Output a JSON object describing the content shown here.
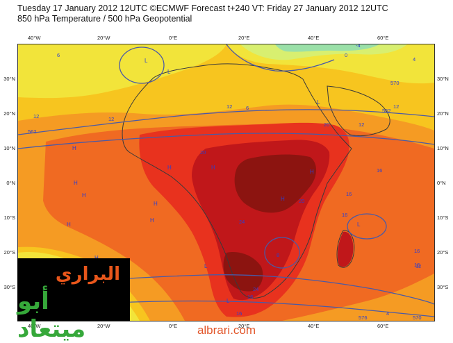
{
  "header": {
    "line1": "Tuesday 17 January 2012 12UTC ©ECMWF Forecast t+240 VT: Friday 27 January 2012 12UTC",
    "line2": "850 hPa Temperature / 500 hPa Geopotential"
  },
  "axes": {
    "lon_labels": [
      "40°W",
      "20°W",
      "0°E",
      "20°E",
      "40°E",
      "60°E"
    ],
    "lat_labels": [
      "30°N",
      "20°N",
      "10°N",
      "0°N",
      "10°S",
      "20°S",
      "30°S"
    ]
  },
  "map": {
    "region": "Africa",
    "colors": {
      "warmest": "#8c1410",
      "very_hot": "#c0171a",
      "hot": "#e8321e",
      "warm": "#f06a22",
      "mild": "#f59b23",
      "base": "#f7c51f",
      "cool": "#f2e43a",
      "cold": "#d8ef70",
      "coldest": "#9ae0a8",
      "coast": "#3a3a3a",
      "contour": "#4a5aa6",
      "label": "#2b3fd0"
    },
    "pressure_labels": [
      {
        "text": "H"
      },
      {
        "text": "H"
      },
      {
        "text": "H"
      },
      {
        "text": "H"
      },
      {
        "text": "H"
      },
      {
        "text": "H"
      },
      {
        "text": "H"
      },
      {
        "text": "H"
      },
      {
        "text": "H"
      },
      {
        "text": "H"
      },
      {
        "text": "H"
      },
      {
        "text": "H"
      },
      {
        "text": "L"
      },
      {
        "text": "L"
      },
      {
        "text": "L"
      },
      {
        "text": "L"
      },
      {
        "text": "L"
      },
      {
        "text": "L"
      }
    ],
    "contour_labels": [
      {
        "text": "6"
      },
      {
        "text": "12"
      },
      {
        "text": "562"
      },
      {
        "text": "12"
      },
      {
        "text": "20"
      },
      {
        "text": "12"
      },
      {
        "text": "6"
      },
      {
        "text": "0"
      },
      {
        "text": "-4"
      },
      {
        "text": "4"
      },
      {
        "text": "570"
      },
      {
        "text": "12"
      },
      {
        "text": "562"
      },
      {
        "text": "20"
      },
      {
        "text": "12"
      },
      {
        "text": "16"
      },
      {
        "text": "16"
      },
      {
        "text": "24"
      },
      {
        "text": "20"
      },
      {
        "text": "16"
      },
      {
        "text": "8"
      },
      {
        "text": "16"
      },
      {
        "text": "16"
      },
      {
        "text": "24"
      },
      {
        "text": "16"
      },
      {
        "text": "16"
      },
      {
        "text": "12"
      },
      {
        "text": "570"
      },
      {
        "text": "4"
      },
      {
        "text": "576"
      }
    ]
  },
  "watermark": {
    "line1": "البراري",
    "line2": "أبو ميتعاد"
  },
  "site": "albrari.com"
}
